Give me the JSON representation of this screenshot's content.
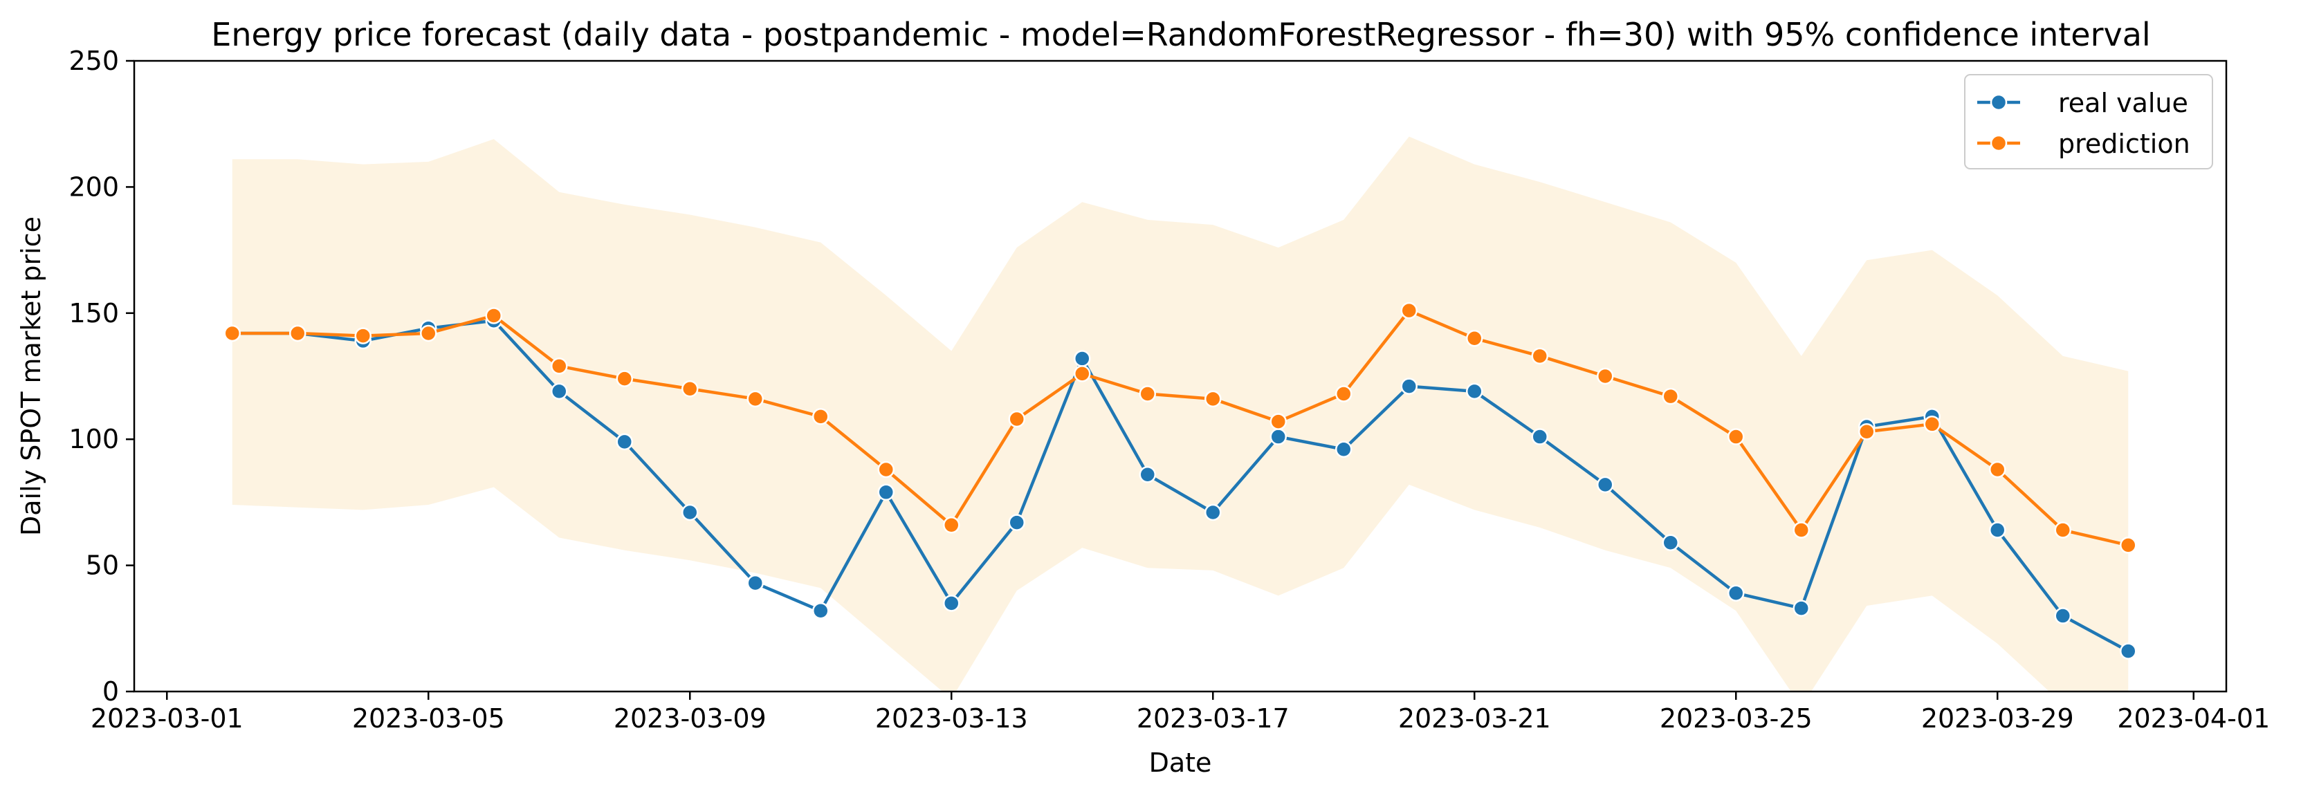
{
  "chart_data": {
    "type": "line",
    "title": "Energy price forecast (daily data - postpandemic - model=RandomForestRegressor - fh=30) with 95% confidence interval",
    "xlabel": "Date",
    "ylabel": "Daily SPOT market price",
    "ylim": [
      0,
      250
    ],
    "xlim": [
      "2023-02-28T12:00",
      "2023-04-01T12:00"
    ],
    "x_ticks": [
      "2023-03-01",
      "2023-03-05",
      "2023-03-09",
      "2023-03-13",
      "2023-03-17",
      "2023-03-21",
      "2023-03-25",
      "2023-03-29",
      "2023-04-01"
    ],
    "y_ticks": [
      0,
      50,
      100,
      150,
      200,
      250
    ],
    "legend_position": "top-right",
    "grid": false,
    "x": [
      "2023-03-02",
      "2023-03-03",
      "2023-03-04",
      "2023-03-05",
      "2023-03-06",
      "2023-03-07",
      "2023-03-08",
      "2023-03-09",
      "2023-03-10",
      "2023-03-11",
      "2023-03-12",
      "2023-03-13",
      "2023-03-14",
      "2023-03-15",
      "2023-03-16",
      "2023-03-17",
      "2023-03-18",
      "2023-03-19",
      "2023-03-20",
      "2023-03-21",
      "2023-03-22",
      "2023-03-23",
      "2023-03-24",
      "2023-03-25",
      "2023-03-26",
      "2023-03-27",
      "2023-03-28",
      "2023-03-29",
      "2023-03-30",
      "2023-03-31"
    ],
    "series": [
      {
        "name": "real value",
        "color": "#1f77b4",
        "values": [
          142,
          142,
          139,
          144,
          147,
          119,
          99,
          71,
          43,
          32,
          79,
          35,
          67,
          132,
          86,
          71,
          101,
          96,
          121,
          119,
          101,
          82,
          59,
          39,
          33,
          105,
          109,
          64,
          30,
          16
        ]
      },
      {
        "name": "prediction",
        "color": "#ff7f0e",
        "values": [
          142,
          142,
          141,
          142,
          149,
          129,
          124,
          120,
          116,
          109,
          88,
          66,
          108,
          126,
          118,
          116,
          107,
          118,
          151,
          140,
          133,
          125,
          117,
          101,
          64,
          103,
          106,
          88,
          64,
          58
        ]
      }
    ],
    "confidence_interval": {
      "color": "#fdf3e1",
      "upper": [
        211,
        211,
        209,
        210,
        219,
        198,
        193,
        189,
        184,
        178,
        157,
        135,
        176,
        194,
        187,
        185,
        176,
        187,
        220,
        209,
        202,
        194,
        186,
        170,
        133,
        171,
        175,
        157,
        133,
        127
      ],
      "lower": [
        74,
        73,
        72,
        74,
        81,
        61,
        56,
        52,
        47,
        41,
        19,
        -3,
        40,
        57,
        49,
        48,
        38,
        49,
        82,
        72,
        65,
        56,
        49,
        32,
        -6,
        34,
        38,
        19,
        -5,
        -11
      ]
    }
  }
}
